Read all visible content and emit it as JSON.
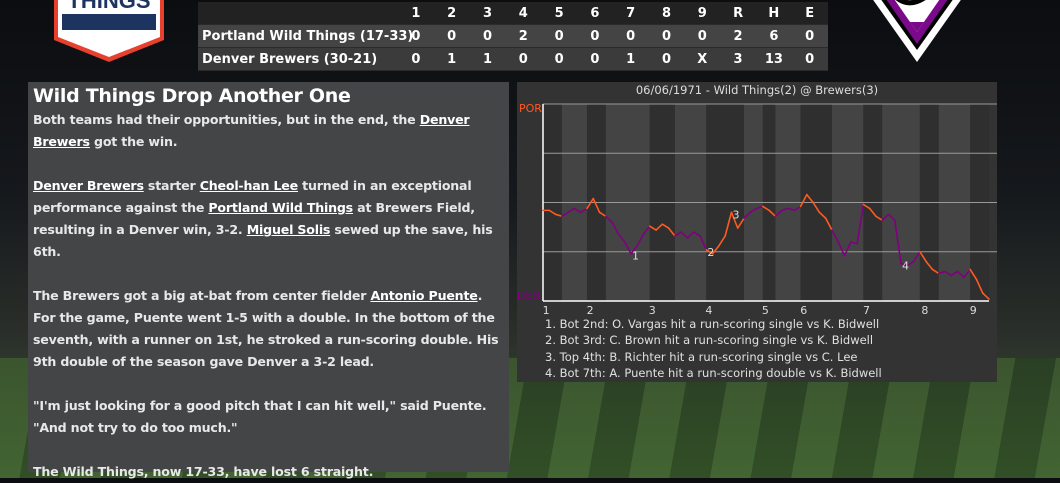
{
  "scoreboard": {
    "innings": [
      "1",
      "2",
      "3",
      "4",
      "5",
      "6",
      "7",
      "8",
      "9",
      "R",
      "H",
      "E"
    ],
    "teams": [
      {
        "name": "Portland Wild Things (17-33)",
        "cells": [
          "0",
          "0",
          "0",
          "2",
          "0",
          "0",
          "0",
          "0",
          "0",
          "2",
          "6",
          "0"
        ]
      },
      {
        "name": "Denver Brewers (30-21)",
        "cells": [
          "0",
          "1",
          "1",
          "0",
          "0",
          "0",
          "1",
          "0",
          "X",
          "3",
          "13",
          "0"
        ]
      }
    ]
  },
  "logos": {
    "left_text": "THINGS",
    "left_colors": [
      "#1d3461",
      "#e8402e",
      "#ffffff"
    ],
    "right_colors": [
      "#7b0a8a",
      "#ffffff",
      "#000000"
    ]
  },
  "article": {
    "title": "Wild Things Drop Another One",
    "paragraphs": [
      [
        {
          "t": "Both teams had their opportunities, but in the end, the "
        },
        {
          "t": "Denver Brewers",
          "link": true
        },
        {
          "t": " got the win."
        }
      ],
      [
        {
          "t": "Denver Brewers",
          "link": true
        },
        {
          "t": " starter "
        },
        {
          "t": "Cheol-han Lee",
          "link": true
        },
        {
          "t": " turned in an exceptional performance against the "
        },
        {
          "t": "Portland Wild Things",
          "link": true
        },
        {
          "t": " at Brewers Field, resulting in a Denver win, 3-2. "
        },
        {
          "t": "Miguel Solis",
          "link": true
        },
        {
          "t": " sewed up the save, his 6th."
        }
      ],
      [
        {
          "t": "The Brewers got a big at-bat from center fielder "
        },
        {
          "t": "Antonio Puente",
          "link": true
        },
        {
          "t": ". For the game, Puente went 1-5 with a double. In the bottom of the seventh, with a runner on 1st, he stroked a run-scoring double. His 9th double of the season gave Denver a 3-2 lead."
        }
      ],
      [
        {
          "t": "\"I'm just looking for a good pitch that I can hit well,\" said Puente. \"And not try to do too much.\""
        }
      ],
      [
        {
          "t": "The Wild Things, now 17-33, have lost 6 straight."
        }
      ]
    ]
  },
  "chart_data": {
    "type": "line",
    "title": "06/06/1971 - Wild Things(2) @ Brewers(3)",
    "ylabel_top": "POR",
    "ylabel_bottom": "DEN",
    "ylim": [
      0,
      1
    ],
    "y_grid": [
      0.25,
      0.5,
      0.75,
      1
    ],
    "colors": {
      "POR": "#ff5a1f",
      "DEN": "#800080"
    },
    "x_unit": "plate appearance",
    "half_innings": [
      {
        "label": "Top 1",
        "start": 0,
        "end": 3
      },
      {
        "label": "Bot 1",
        "start": 3,
        "end": 7
      },
      {
        "label": "Top 2",
        "start": 7,
        "end": 10
      },
      {
        "label": "Bot 2",
        "start": 10,
        "end": 17
      },
      {
        "label": "Top 3",
        "start": 17,
        "end": 21
      },
      {
        "label": "Bot 3",
        "start": 21,
        "end": 26
      },
      {
        "label": "Top 4",
        "start": 26,
        "end": 32
      },
      {
        "label": "Bot 4",
        "start": 32,
        "end": 35
      },
      {
        "label": "Top 5",
        "start": 35,
        "end": 37
      },
      {
        "label": "Bot 5",
        "start": 37,
        "end": 41
      },
      {
        "label": "Top 6",
        "start": 41,
        "end": 46
      },
      {
        "label": "Bot 6",
        "start": 46,
        "end": 51
      },
      {
        "label": "Top 7",
        "start": 51,
        "end": 54
      },
      {
        "label": "Bot 7",
        "start": 54,
        "end": 60
      },
      {
        "label": "Top 8",
        "start": 60,
        "end": 63
      },
      {
        "label": "Bot 8",
        "start": 63,
        "end": 68
      },
      {
        "label": "Top 9",
        "start": 68,
        "end": 71
      }
    ],
    "x_ticks": [
      {
        "label": "1",
        "x": 0.5
      },
      {
        "label": "2",
        "x": 7.5
      },
      {
        "label": "3",
        "x": 17.4
      },
      {
        "label": "4",
        "x": 26.4
      },
      {
        "label": "5",
        "x": 35.4
      },
      {
        "label": "6",
        "x": 41.5
      },
      {
        "label": "7",
        "x": 51.5
      },
      {
        "label": "8",
        "x": 60.8
      },
      {
        "label": "9",
        "x": 68.5
      }
    ],
    "por_win_prob": [
      0.46,
      0.46,
      0.44,
      0.43,
      0.45,
      0.47,
      0.45,
      0.47,
      0.52,
      0.45,
      0.43,
      0.4,
      0.34,
      0.3,
      0.24,
      0.28,
      0.34,
      0.38,
      0.36,
      0.39,
      0.37,
      0.33,
      0.35,
      0.32,
      0.35,
      0.33,
      0.26,
      0.24,
      0.28,
      0.33,
      0.45,
      0.37,
      0.42,
      0.45,
      0.47,
      0.48,
      0.46,
      0.43,
      0.46,
      0.47,
      0.46,
      0.48,
      0.54,
      0.5,
      0.45,
      0.42,
      0.36,
      0.3,
      0.23,
      0.3,
      0.29,
      0.49,
      0.47,
      0.43,
      0.41,
      0.44,
      0.41,
      0.19,
      0.18,
      0.2,
      0.25,
      0.2,
      0.16,
      0.14,
      0.15,
      0.13,
      0.15,
      0.12,
      0.16,
      0.11,
      0.04,
      0.01
    ],
    "annotations": [
      {
        "label": "1",
        "x": 14
      },
      {
        "label": "2",
        "x": 26
      },
      {
        "label": "3",
        "x": 30
      },
      {
        "label": "4",
        "x": 57
      }
    ],
    "notes": [
      "1. Bot 2nd: O. Vargas hit a run-scoring single vs K. Bidwell",
      "2. Bot 3rd: C. Brown hit a run-scoring single vs K. Bidwell",
      "3. Top 4th: B. Richter hit a run-scoring single vs C. Lee",
      "4. Bot 7th: A. Puente hit a run-scoring double vs K. Bidwell"
    ]
  }
}
